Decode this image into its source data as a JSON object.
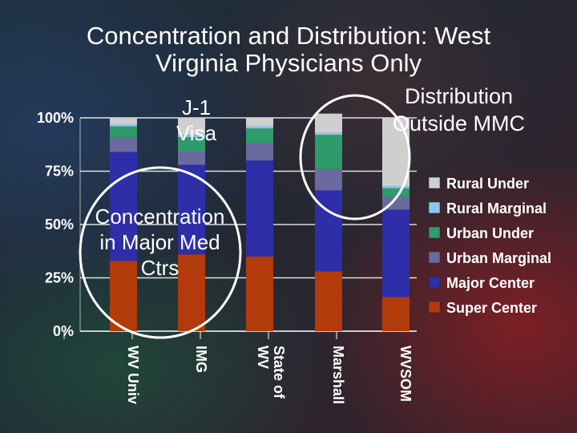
{
  "title_lines": [
    "Concentration and Distribution: West",
    "Virginia Physicians Only"
  ],
  "annotations": {
    "visa": [
      "J-1",
      "Visa"
    ],
    "distribution": [
      "Distribution",
      "Outside MMC"
    ],
    "concentration": [
      "Concentration",
      "in Major Med",
      "Ctrs"
    ]
  },
  "colors": {
    "Super Center": "#b33a0a",
    "Major Center": "#2e2ea8",
    "Urban Marginal": "#6a6a9e",
    "Urban Under": "#2f9a6a",
    "Rural Marginal": "#8ec4ee",
    "Rural Under": "#cfcfcf",
    "circle": "#ffffff"
  },
  "chart_data": {
    "type": "bar",
    "stacked": true,
    "categories": [
      "WV Univ",
      "IMG",
      "State of WV",
      "Marshall",
      "WVSOM"
    ],
    "series": [
      {
        "name": "Super Center",
        "values": [
          33,
          36,
          35,
          28,
          16
        ]
      },
      {
        "name": "Major Center",
        "values": [
          51,
          42,
          45,
          38,
          41
        ]
      },
      {
        "name": "Urban Marginal",
        "values": [
          7,
          6,
          8,
          10,
          6
        ]
      },
      {
        "name": "Urban Under",
        "values": [
          5,
          7,
          7,
          16,
          4
        ]
      },
      {
        "name": "Rural Marginal",
        "values": [
          1,
          1,
          1,
          1,
          1
        ]
      },
      {
        "name": "Rural Under",
        "values": [
          3,
          8,
          4,
          9,
          32
        ]
      }
    ],
    "ylim": [
      0,
      100
    ],
    "yticks": [
      "0%",
      "25%",
      "50%",
      "75%",
      "100%"
    ],
    "legend_position": "right",
    "grid": true
  }
}
